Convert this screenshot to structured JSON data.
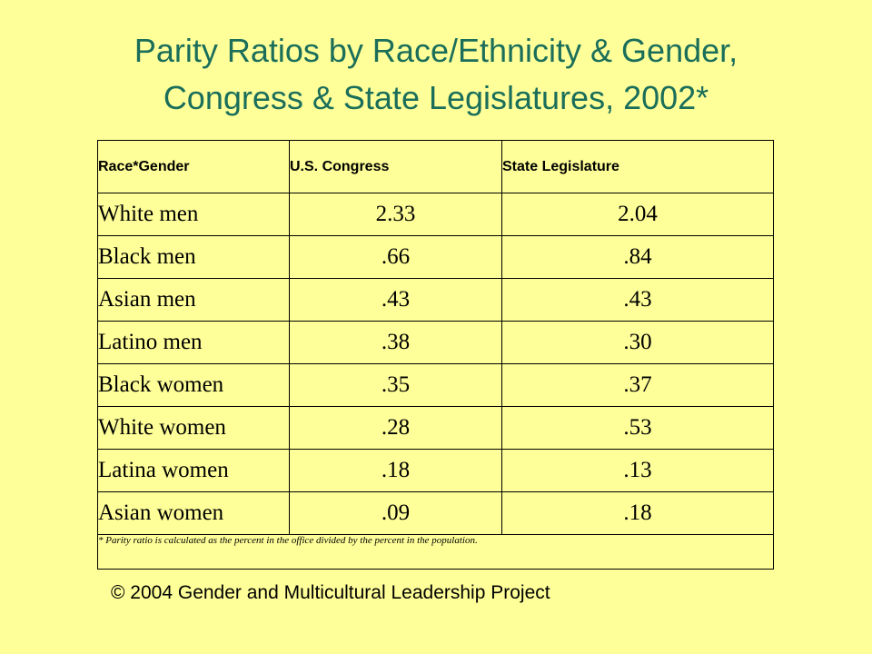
{
  "title": {
    "line1": "Parity Ratios by Race/Ethnicity & Gender,",
    "line2": "Congress & State Legislatures, 2002*"
  },
  "chart_data": {
    "type": "table",
    "columns": [
      "Race*Gender",
      "U.S. Congress",
      "State Legislature"
    ],
    "rows": [
      [
        "White men",
        "2.33",
        "2.04"
      ],
      [
        "Black men",
        ".66",
        ".84"
      ],
      [
        "Asian men",
        ".43",
        ".43"
      ],
      [
        "Latino men",
        ".38",
        ".30"
      ],
      [
        "Black women",
        ".35",
        ".37"
      ],
      [
        "White women",
        ".28",
        ".53"
      ],
      [
        "Latina women",
        ".18",
        ".13"
      ],
      [
        "Asian women",
        ".09",
        ".18"
      ]
    ],
    "footnote": "* Parity ratio is calculated as the percent in the office divided by the percent in the population."
  },
  "copyright": "© 2004 Gender and Multicultural Leadership Project"
}
